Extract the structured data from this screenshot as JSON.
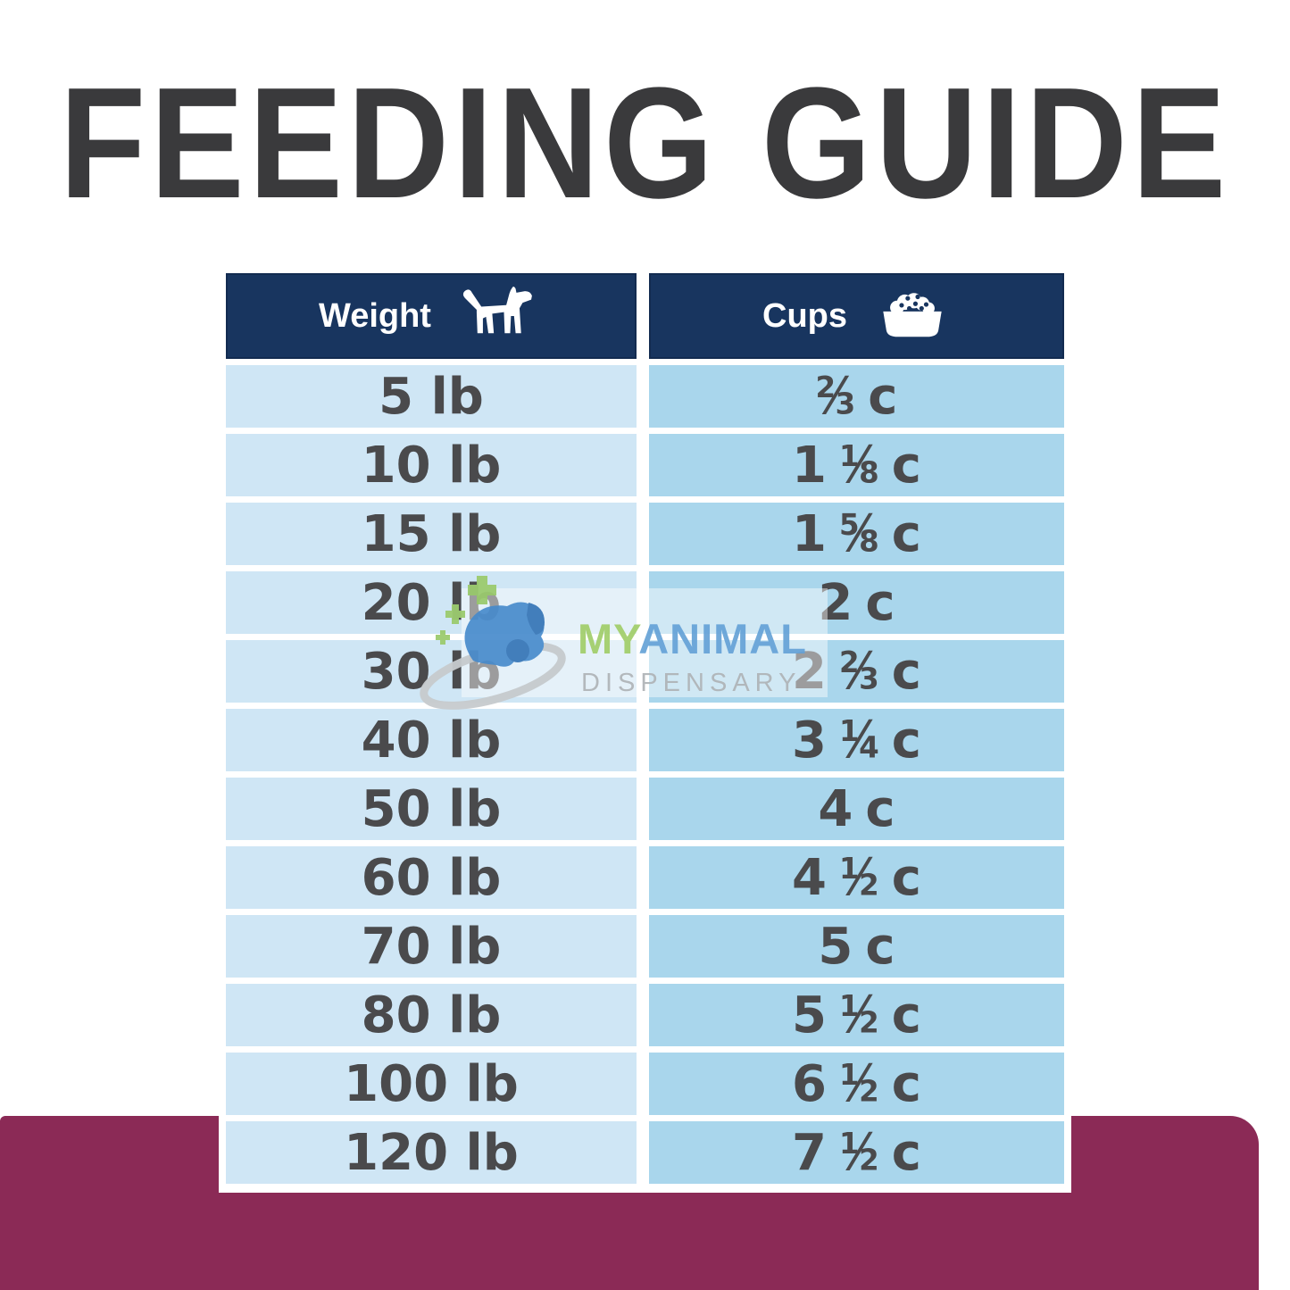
{
  "title": "FEEDING GUIDE",
  "chart_data": {
    "type": "table",
    "title": "FEEDING GUIDE",
    "columns": [
      {
        "label": "Weight",
        "icon": "dog-icon"
      },
      {
        "label": "Cups",
        "icon": "food-bowl-icon"
      }
    ],
    "rows": [
      {
        "weight": "5 lb",
        "cups_display": "2/3 c",
        "cups": {
          "whole": "",
          "num": "2",
          "den": "3",
          "unit": "c"
        }
      },
      {
        "weight": "10 lb",
        "cups_display": "1 1/8 c",
        "cups": {
          "whole": "1",
          "num": "1",
          "den": "8",
          "unit": "c"
        }
      },
      {
        "weight": "15 lb",
        "cups_display": "1 5/8 c",
        "cups": {
          "whole": "1",
          "num": "5",
          "den": "8",
          "unit": "c"
        }
      },
      {
        "weight": "20 lb",
        "cups_display": "2 c",
        "cups": {
          "whole": "2",
          "num": "",
          "den": "",
          "unit": "c"
        }
      },
      {
        "weight": "30 lb",
        "cups_display": "2 2/3 c",
        "cups": {
          "whole": "2",
          "num": "2",
          "den": "3",
          "unit": "c"
        }
      },
      {
        "weight": "40 lb",
        "cups_display": "3 1/4 c",
        "cups": {
          "whole": "3",
          "num": "1",
          "den": "4",
          "unit": "c"
        }
      },
      {
        "weight": "50 lb",
        "cups_display": "4 c",
        "cups": {
          "whole": "4",
          "num": "",
          "den": "",
          "unit": "c"
        }
      },
      {
        "weight": "60 lb",
        "cups_display": "4 1/2 c",
        "cups": {
          "whole": "4",
          "num": "1",
          "den": "2",
          "unit": "c"
        }
      },
      {
        "weight": "70 lb",
        "cups_display": "5 c",
        "cups": {
          "whole": "5",
          "num": "",
          "den": "",
          "unit": "c"
        }
      },
      {
        "weight": "80 lb",
        "cups_display": "5 1/2 c",
        "cups": {
          "whole": "5",
          "num": "1",
          "den": "2",
          "unit": "c"
        }
      },
      {
        "weight": "100 lb",
        "cups_display": "6 1/2 c",
        "cups": {
          "whole": "6",
          "num": "1",
          "den": "2",
          "unit": "c"
        }
      },
      {
        "weight": "120 lb",
        "cups_display": "7 1/2 c",
        "cups": {
          "whole": "7",
          "num": "1",
          "den": "2",
          "unit": "c"
        }
      }
    ]
  },
  "header": {
    "weight_label": "Weight",
    "cups_label": "Cups"
  },
  "watermark": {
    "brand_part1": "MY",
    "brand_part2": "ANIMAL",
    "subtitle": "DISPENSARY"
  },
  "colors": {
    "title_charcoal": "#3a3a3c",
    "header_navy": "#18355f",
    "weight_cell_blue": "#cfe6f5",
    "cups_cell_blue": "#a9d6ec",
    "row_text_gray": "#4a4a4c",
    "accent_maroon": "#8b2a56",
    "brand_green": "#a4cf6e",
    "brand_blue": "#6aa5d8",
    "subtitle_gray": "#b2b6b9"
  }
}
